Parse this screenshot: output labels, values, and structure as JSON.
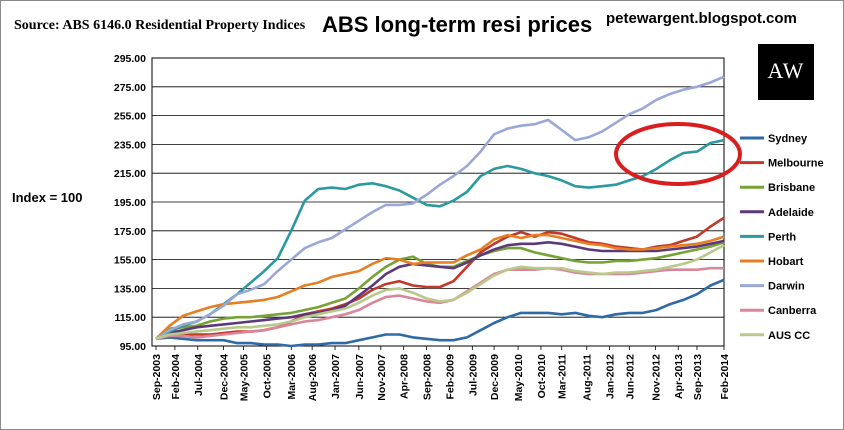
{
  "source": "Source: ABS 6146.0 Residential Property Indices",
  "blog": "petewargent.blogspot.com",
  "index_label": "Index = 100",
  "logo_text": "AW",
  "chart_data": {
    "type": "line",
    "title": "ABS long-term resi prices",
    "ylim": [
      95,
      295
    ],
    "yticks": [
      "295.00",
      "275.00",
      "255.00",
      "235.00",
      "215.00",
      "195.00",
      "175.00",
      "155.00",
      "135.00",
      "115.00",
      "95.00"
    ],
    "xticks": [
      "Sep-2003",
      "Feb-2004",
      "Jul-2004",
      "Dec-2004",
      "May-2005",
      "Oct-2005",
      "Mar-2006",
      "Aug-2006",
      "Jan-2007",
      "Jun-2007",
      "Nov-2007",
      "Apr-2008",
      "Sep-2008",
      "Feb-2009",
      "Jul-2009",
      "Dec-2009",
      "May-2010",
      "Oct-2010",
      "Mar-2011",
      "Aug-2011",
      "Jan-2012",
      "Jun-2012",
      "Nov-2012",
      "Apr-2013",
      "Sep-2013",
      "Feb-2014"
    ],
    "x": [
      "Sep-2003",
      "Dec-2003",
      "Mar-2004",
      "Jun-2004",
      "Sep-2004",
      "Dec-2004",
      "Mar-2005",
      "Jun-2005",
      "Sep-2005",
      "Dec-2005",
      "Mar-2006",
      "Jun-2006",
      "Sep-2006",
      "Dec-2006",
      "Mar-2007",
      "Jun-2007",
      "Sep-2007",
      "Dec-2007",
      "Mar-2008",
      "Jun-2008",
      "Sep-2008",
      "Dec-2008",
      "Mar-2009",
      "Jun-2009",
      "Sep-2009",
      "Dec-2009",
      "Mar-2010",
      "Jun-2010",
      "Sep-2010",
      "Dec-2010",
      "Mar-2011",
      "Jun-2011",
      "Sep-2011",
      "Dec-2011",
      "Mar-2012",
      "Jun-2012",
      "Sep-2012",
      "Dec-2012",
      "Mar-2013",
      "Jun-2013",
      "Sep-2013",
      "Dec-2013",
      "Mar-2014"
    ],
    "series": [
      {
        "name": "Sydney",
        "color": "#2e6aa6",
        "values": [
          100,
          101,
          100,
          99,
          99,
          99,
          97,
          97,
          96,
          96,
          95,
          96,
          96,
          97,
          97,
          99,
          101,
          103,
          103,
          101,
          100,
          99,
          99,
          101,
          106,
          111,
          115,
          118,
          118,
          118,
          117,
          118,
          116,
          115,
          117,
          118,
          118,
          120,
          124,
          127,
          131,
          137,
          141
        ]
      },
      {
        "name": "Melbourne",
        "color": "#c0392b",
        "values": [
          100,
          104,
          103,
          103,
          103,
          104,
          105,
          105,
          106,
          108,
          112,
          117,
          119,
          121,
          124,
          128,
          134,
          138,
          140,
          137,
          136,
          136,
          140,
          150,
          160,
          166,
          171,
          174,
          171,
          174,
          173,
          170,
          167,
          166,
          164,
          163,
          162,
          164,
          165,
          168,
          171,
          178,
          184
        ]
      },
      {
        "name": "Brisbane",
        "color": "#77a236",
        "values": [
          100,
          107,
          108,
          109,
          112,
          114,
          115,
          115,
          116,
          117,
          118,
          120,
          122,
          125,
          128,
          135,
          143,
          150,
          155,
          157,
          152,
          150,
          150,
          154,
          158,
          161,
          163,
          163,
          160,
          158,
          156,
          154,
          153,
          153,
          154,
          154,
          155,
          156,
          158,
          160,
          162,
          164,
          167
        ]
      },
      {
        "name": "Adelaide",
        "color": "#5c3a7a",
        "values": [
          100,
          104,
          106,
          108,
          109,
          110,
          111,
          112,
          113,
          114,
          115,
          117,
          118,
          120,
          123,
          130,
          137,
          145,
          150,
          152,
          151,
          150,
          149,
          153,
          158,
          162,
          165,
          166,
          166,
          167,
          166,
          164,
          162,
          161,
          161,
          161,
          161,
          161,
          162,
          163,
          164,
          166,
          168
        ]
      },
      {
        "name": "Perth",
        "color": "#2b9a9f",
        "values": [
          100,
          105,
          109,
          112,
          117,
          124,
          131,
          139,
          147,
          156,
          175,
          196,
          204,
          205,
          204,
          207,
          208,
          206,
          203,
          198,
          193,
          192,
          196,
          202,
          213,
          218,
          220,
          218,
          215,
          213,
          210,
          206,
          205,
          206,
          207,
          210,
          213,
          218,
          224,
          229,
          230,
          236,
          238
        ]
      },
      {
        "name": "Hobart",
        "color": "#e67e22",
        "values": [
          100,
          109,
          116,
          119,
          122,
          124,
          125,
          126,
          127,
          129,
          133,
          137,
          139,
          143,
          145,
          147,
          152,
          156,
          155,
          152,
          153,
          153,
          153,
          158,
          162,
          169,
          172,
          170,
          172,
          172,
          170,
          168,
          166,
          165,
          163,
          162,
          162,
          163,
          164,
          165,
          166,
          168,
          171
        ]
      },
      {
        "name": "Darwin",
        "color": "#9aa8d8",
        "values": [
          100,
          106,
          110,
          112,
          117,
          123,
          131,
          134,
          138,
          147,
          155,
          163,
          167,
          170,
          176,
          182,
          188,
          193,
          193,
          194,
          200,
          207,
          213,
          220,
          230,
          242,
          246,
          248,
          249,
          252,
          245,
          238,
          240,
          244,
          250,
          256,
          260,
          266,
          270,
          273,
          275,
          278,
          282
        ]
      },
      {
        "name": "Canberra",
        "color": "#d9869b",
        "values": [
          100,
          102,
          102,
          101,
          102,
          103,
          104,
          105,
          106,
          108,
          110,
          112,
          113,
          115,
          117,
          120,
          125,
          129,
          130,
          128,
          126,
          125,
          127,
          133,
          139,
          145,
          148,
          148,
          148,
          149,
          148,
          146,
          145,
          145,
          145,
          145,
          146,
          147,
          148,
          148,
          148,
          149,
          149
        ]
      },
      {
        "name": "AUS CC",
        "color": "#b8c98a",
        "values": [
          100,
          103,
          104,
          105,
          106,
          107,
          108,
          108,
          109,
          110,
          112,
          115,
          117,
          119,
          121,
          125,
          130,
          134,
          135,
          132,
          128,
          126,
          127,
          132,
          138,
          144,
          148,
          150,
          149,
          149,
          149,
          147,
          146,
          145,
          146,
          146,
          147,
          148,
          150,
          152,
          155,
          160,
          165
        ]
      }
    ]
  }
}
